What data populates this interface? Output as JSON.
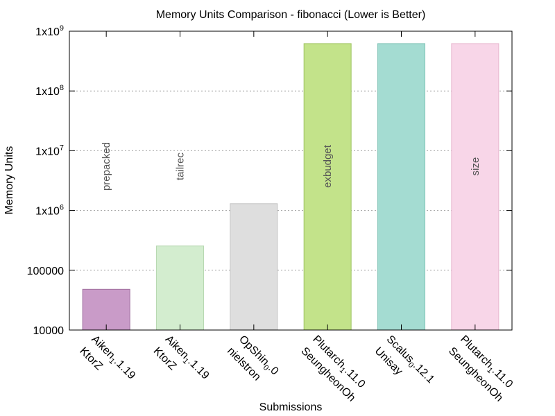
{
  "chart_data": {
    "type": "bar",
    "title": "Memory Units Comparison - fibonacci (Lower is Better)",
    "xlabel": "Submissions",
    "ylabel": "Memory Units",
    "yscale": "log",
    "ylim": [
      10000,
      1000000000
    ],
    "grid": "horizontal dotted",
    "y_ticks": [
      {
        "value": 10000,
        "base": "10000",
        "exp": ""
      },
      {
        "value": 100000,
        "base": "100000",
        "exp": ""
      },
      {
        "value": 1000000,
        "base": "1x10",
        "exp": "6"
      },
      {
        "value": 10000000,
        "base": "1x10",
        "exp": "7"
      },
      {
        "value": 100000000,
        "base": "1x10",
        "exp": "8"
      },
      {
        "value": 1000000000,
        "base": "1x10",
        "exp": "9"
      }
    ],
    "categories": [
      {
        "lang": "Aiken",
        "version": "1.1.19",
        "author": "KtorZ"
      },
      {
        "lang": "Aiken",
        "version": "1.1.19",
        "author": "KtorZ"
      },
      {
        "lang": "OpShin",
        "version": "0.0",
        "author": "nielstron"
      },
      {
        "lang": "Plutarch",
        "version": "1.11.0",
        "author": "SeungheonOh"
      },
      {
        "lang": "Scalus",
        "version": "0.12.1",
        "author": "Unisay"
      },
      {
        "lang": "Plutarch",
        "version": "1.11.0",
        "author": "SeungheonOh"
      }
    ],
    "values": [
      48000,
      255000,
      1300000,
      620000000,
      620000000,
      620000000
    ],
    "bar_labels": [
      "prepacked",
      "tailrec",
      "",
      "exbudget",
      "",
      "size"
    ],
    "colors": [
      "#c99bc8",
      "#d3edcf",
      "#dedede",
      "#c3e38a",
      "#a4dcd2",
      "#f8d6e8"
    ],
    "edge_colors": [
      "#9e6b9d",
      "#b8d9b2",
      "#c4c4c4",
      "#9fc463",
      "#7fc2b6",
      "#e8b8d0"
    ]
  }
}
